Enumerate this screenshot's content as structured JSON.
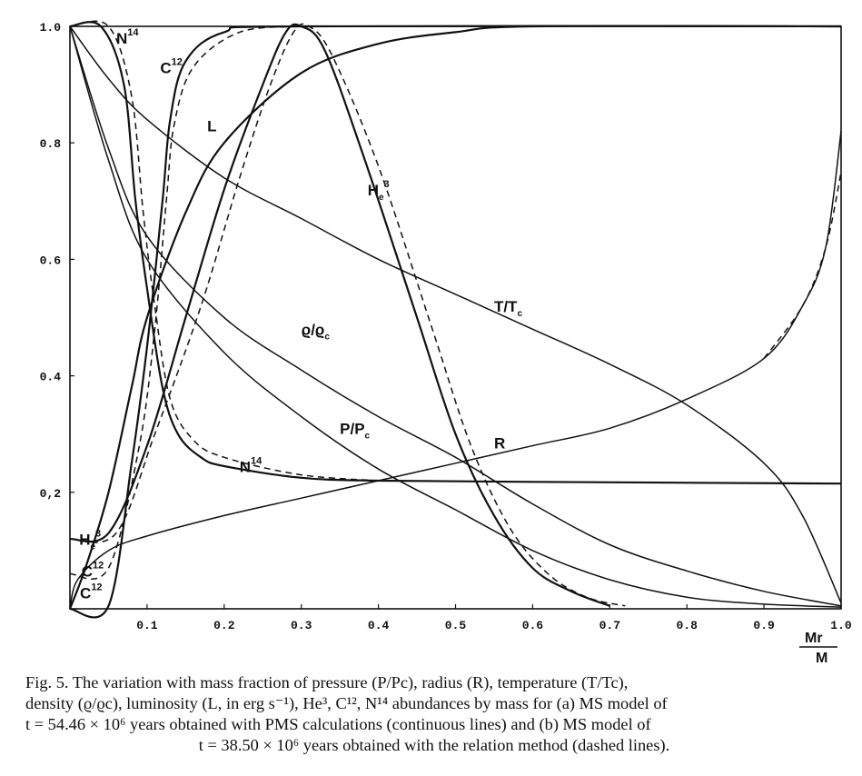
{
  "figure": {
    "caption_number": "Fig. 5.",
    "caption_lines": [
      "The variation with mass fraction of pressure (P/Pc), radius (R), temperature (T/Tc),",
      "density (ϱ/ϱc), luminosity (L, in erg s⁻¹), He³, C¹², N¹⁴ abundances by mass for (a) MS model of",
      "t = 54.46 × 10⁶ years obtained with PMS calculations (continuous lines) and (b) MS model of"
    ],
    "caption_last": "t = 38.50 × 10⁶ years obtained with the relation method (dashed lines)."
  },
  "chart_data": {
    "type": "line",
    "xlabel": "Mr/M",
    "x_ticks": [
      "0.1",
      "0.2",
      "0.3",
      "0.4",
      "0.5",
      "0.6",
      "0.7",
      "0.8",
      "0.9",
      "1.0"
    ],
    "y_ticks": [
      "0,2",
      "0.4",
      "0.6",
      "0.8",
      "1.0"
    ],
    "xlim": [
      0,
      1.0
    ],
    "ylim": [
      0,
      1.0
    ],
    "grid": false,
    "series": [
      {
        "name": "T/Tc",
        "style": "solid",
        "points": [
          [
            0,
            1.0
          ],
          [
            0.05,
            0.91
          ],
          [
            0.1,
            0.84
          ],
          [
            0.2,
            0.74
          ],
          [
            0.3,
            0.67
          ],
          [
            0.4,
            0.6
          ],
          [
            0.5,
            0.54
          ],
          [
            0.6,
            0.48
          ],
          [
            0.7,
            0.42
          ],
          [
            0.8,
            0.35
          ],
          [
            0.9,
            0.25
          ],
          [
            0.95,
            0.16
          ],
          [
            1.0,
            0.01
          ]
        ]
      },
      {
        "name": "ϱ/ϱc",
        "style": "solid",
        "points": [
          [
            0,
            1.0
          ],
          [
            0.05,
            0.79
          ],
          [
            0.1,
            0.64
          ],
          [
            0.2,
            0.5
          ],
          [
            0.3,
            0.41
          ],
          [
            0.4,
            0.33
          ],
          [
            0.5,
            0.26
          ],
          [
            0.6,
            0.18
          ],
          [
            0.7,
            0.11
          ],
          [
            0.8,
            0.065
          ],
          [
            0.9,
            0.03
          ],
          [
            1.0,
            0.005
          ]
        ]
      },
      {
        "name": "P/Pc",
        "style": "solid",
        "points": [
          [
            0,
            1.0
          ],
          [
            0.05,
            0.77
          ],
          [
            0.1,
            0.6
          ],
          [
            0.2,
            0.44
          ],
          [
            0.3,
            0.33
          ],
          [
            0.4,
            0.24
          ],
          [
            0.5,
            0.17
          ],
          [
            0.6,
            0.1
          ],
          [
            0.7,
            0.05
          ],
          [
            0.8,
            0.02
          ],
          [
            0.9,
            0.008
          ],
          [
            1.0,
            0.003
          ]
        ]
      },
      {
        "name": "R",
        "style": "solid",
        "points": [
          [
            0,
            0.0
          ],
          [
            0.01,
            0.05
          ],
          [
            0.05,
            0.1
          ],
          [
            0.1,
            0.125
          ],
          [
            0.2,
            0.16
          ],
          [
            0.3,
            0.19
          ],
          [
            0.4,
            0.22
          ],
          [
            0.5,
            0.25
          ],
          [
            0.6,
            0.28
          ],
          [
            0.7,
            0.31
          ],
          [
            0.8,
            0.36
          ],
          [
            0.9,
            0.43
          ],
          [
            0.95,
            0.52
          ],
          [
            0.98,
            0.62
          ],
          [
            1.0,
            0.82
          ]
        ]
      },
      {
        "name": "R",
        "style": "dashed",
        "points": [
          [
            0.9,
            0.43
          ],
          [
            0.95,
            0.52
          ],
          [
            0.98,
            0.62
          ],
          [
            1.0,
            0.75
          ]
        ]
      },
      {
        "name": "L",
        "style": "solid",
        "points": [
          [
            0,
            0.0
          ],
          [
            0.02,
            0.07
          ],
          [
            0.05,
            0.2
          ],
          [
            0.08,
            0.38
          ],
          [
            0.1,
            0.5
          ],
          [
            0.15,
            0.68
          ],
          [
            0.2,
            0.8
          ],
          [
            0.3,
            0.92
          ],
          [
            0.4,
            0.97
          ],
          [
            0.5,
            0.99
          ],
          [
            0.6,
            1.0
          ],
          [
            1.0,
            1.0
          ]
        ]
      },
      {
        "name": "N¹⁴",
        "style": "solid",
        "points": [
          [
            0,
            1.0
          ],
          [
            0.04,
            1.0
          ],
          [
            0.07,
            0.9
          ],
          [
            0.085,
            0.7
          ],
          [
            0.1,
            0.55
          ],
          [
            0.12,
            0.38
          ],
          [
            0.14,
            0.3
          ],
          [
            0.17,
            0.26
          ],
          [
            0.2,
            0.245
          ],
          [
            0.3,
            0.225
          ],
          [
            0.4,
            0.22
          ],
          [
            0.6,
            0.218
          ],
          [
            1.0,
            0.215
          ]
        ]
      },
      {
        "name": "N¹⁴",
        "style": "dashed",
        "points": [
          [
            0,
            1.0
          ],
          [
            0.05,
            1.0
          ],
          [
            0.08,
            0.88
          ],
          [
            0.095,
            0.68
          ],
          [
            0.11,
            0.52
          ],
          [
            0.13,
            0.36
          ],
          [
            0.16,
            0.29
          ],
          [
            0.2,
            0.26
          ],
          [
            0.3,
            0.23
          ],
          [
            0.4,
            0.22
          ]
        ]
      },
      {
        "name": "C¹²",
        "style": "solid",
        "points": [
          [
            0,
            0.0
          ],
          [
            0.05,
            0.005
          ],
          [
            0.08,
            0.25
          ],
          [
            0.1,
            0.45
          ],
          [
            0.12,
            0.7
          ],
          [
            0.13,
            0.84
          ],
          [
            0.15,
            0.94
          ],
          [
            0.2,
            0.99
          ],
          [
            0.3,
            1.0
          ],
          [
            1.0,
            1.0
          ]
        ]
      },
      {
        "name": "C¹²",
        "style": "dashed",
        "points": [
          [
            0,
            0.06
          ],
          [
            0.05,
            0.07
          ],
          [
            0.09,
            0.28
          ],
          [
            0.11,
            0.48
          ],
          [
            0.125,
            0.7
          ],
          [
            0.135,
            0.83
          ],
          [
            0.16,
            0.93
          ],
          [
            0.22,
            0.99
          ],
          [
            0.3,
            1.0
          ]
        ]
      },
      {
        "name": "He³",
        "style": "solid",
        "points": [
          [
            0,
            0.12
          ],
          [
            0.05,
            0.13
          ],
          [
            0.1,
            0.28
          ],
          [
            0.15,
            0.5
          ],
          [
            0.2,
            0.72
          ],
          [
            0.25,
            0.9
          ],
          [
            0.28,
            0.99
          ],
          [
            0.3,
            1.0
          ],
          [
            0.33,
            0.96
          ],
          [
            0.38,
            0.78
          ],
          [
            0.45,
            0.5
          ],
          [
            0.5,
            0.3
          ],
          [
            0.55,
            0.16
          ],
          [
            0.6,
            0.07
          ],
          [
            0.65,
            0.03
          ],
          [
            0.7,
            0.005
          ]
        ]
      },
      {
        "name": "He³",
        "style": "dashed",
        "points": [
          [
            0,
            0.12
          ],
          [
            0.06,
            0.13
          ],
          [
            0.11,
            0.3
          ],
          [
            0.17,
            0.52
          ],
          [
            0.22,
            0.74
          ],
          [
            0.26,
            0.9
          ],
          [
            0.29,
            0.99
          ],
          [
            0.31,
            1.0
          ],
          [
            0.34,
            0.95
          ],
          [
            0.4,
            0.76
          ],
          [
            0.47,
            0.48
          ],
          [
            0.52,
            0.28
          ],
          [
            0.57,
            0.14
          ],
          [
            0.62,
            0.06
          ],
          [
            0.67,
            0.02
          ],
          [
            0.72,
            0.005
          ]
        ]
      }
    ],
    "labels": [
      {
        "id": "n14_top",
        "base": "N",
        "sup": "14",
        "fx": 0.06,
        "fy": 0.97
      },
      {
        "id": "c12_top",
        "base": "C",
        "sup": "12",
        "fx": 0.117,
        "fy": 0.92
      },
      {
        "id": "L",
        "base": "L",
        "sup": "",
        "fx": 0.178,
        "fy": 0.82
      },
      {
        "id": "he3_right",
        "base": "H",
        "sub": "e",
        "sup": "3",
        "fx": 0.386,
        "fy": 0.71
      },
      {
        "id": "ttc",
        "base": "T/T",
        "sub": "c",
        "sup": "",
        "fx": 0.55,
        "fy": 0.51
      },
      {
        "id": "rho",
        "base": "ϱ/ϱ",
        "sub": "c",
        "sup": "",
        "fx": 0.3,
        "fy": 0.47
      },
      {
        "id": "ppc",
        "base": "P/P",
        "sub": "c",
        "sup": "",
        "fx": 0.35,
        "fy": 0.3
      },
      {
        "id": "R",
        "base": "R",
        "sup": "",
        "fx": 0.55,
        "fy": 0.275
      },
      {
        "id": "n14_bottom",
        "base": "N",
        "sup": "14",
        "fx": 0.22,
        "fy": 0.235
      },
      {
        "id": "he3_left",
        "base": "H",
        "sub": "e",
        "sup": "3",
        "fx": 0.012,
        "fy": 0.11
      },
      {
        "id": "c12_mid",
        "base": "C",
        "sup": "12",
        "fx": 0.015,
        "fy": 0.055
      },
      {
        "id": "c12_low",
        "base": "C",
        "sup": "12",
        "fx": 0.013,
        "fy": 0.018
      }
    ]
  }
}
